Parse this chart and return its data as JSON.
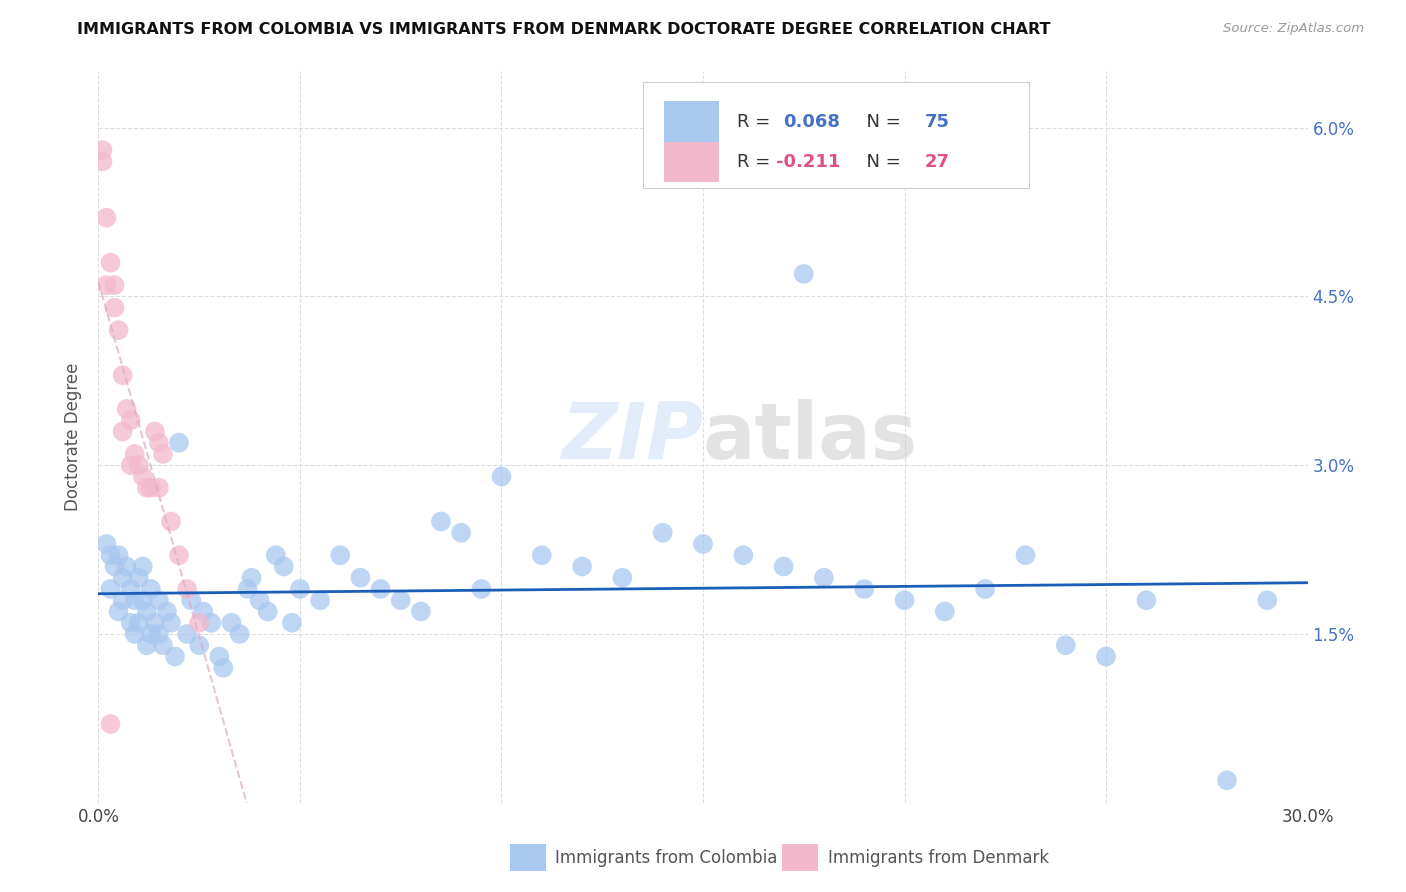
{
  "title": "IMMIGRANTS FROM COLOMBIA VS IMMIGRANTS FROM DENMARK DOCTORATE DEGREE CORRELATION CHART",
  "source": "Source: ZipAtlas.com",
  "ylabel": "Doctorate Degree",
  "xlim": [
    0.0,
    0.3
  ],
  "ylim": [
    0.0,
    0.065
  ],
  "xticks": [
    0.0,
    0.05,
    0.1,
    0.15,
    0.2,
    0.25,
    0.3
  ],
  "yticks": [
    0.0,
    0.015,
    0.03,
    0.045,
    0.06
  ],
  "colombia_R": 0.068,
  "colombia_N": 75,
  "denmark_R": -0.211,
  "denmark_N": 27,
  "colombia_color": "#a8c8f0",
  "denmark_color": "#f4b8cc",
  "colombia_line_color": "#1a5eb8",
  "denmark_line_color": "#e8b8c8",
  "watermark_color": "#ddeeff",
  "background_color": "#ffffff",
  "grid_color": "#dddddd",
  "right_tick_color": "#4472c4",
  "colombia_scatter_x": [
    0.002,
    0.003,
    0.003,
    0.004,
    0.005,
    0.005,
    0.006,
    0.006,
    0.007,
    0.008,
    0.008,
    0.009,
    0.009,
    0.01,
    0.01,
    0.011,
    0.011,
    0.012,
    0.012,
    0.013,
    0.013,
    0.014,
    0.015,
    0.015,
    0.016,
    0.017,
    0.018,
    0.019,
    0.02,
    0.022,
    0.023,
    0.025,
    0.026,
    0.028,
    0.03,
    0.031,
    0.033,
    0.035,
    0.037,
    0.038,
    0.04,
    0.042,
    0.044,
    0.046,
    0.048,
    0.05,
    0.055,
    0.06,
    0.065,
    0.07,
    0.075,
    0.08,
    0.085,
    0.09,
    0.095,
    0.1,
    0.11,
    0.12,
    0.13,
    0.14,
    0.15,
    0.16,
    0.17,
    0.18,
    0.19,
    0.2,
    0.21,
    0.22,
    0.23,
    0.24,
    0.25,
    0.26,
    0.175,
    0.28,
    0.29
  ],
  "colombia_scatter_y": [
    0.023,
    0.019,
    0.022,
    0.021,
    0.017,
    0.022,
    0.018,
    0.02,
    0.021,
    0.016,
    0.019,
    0.015,
    0.018,
    0.016,
    0.02,
    0.018,
    0.021,
    0.014,
    0.017,
    0.015,
    0.019,
    0.016,
    0.015,
    0.018,
    0.014,
    0.017,
    0.016,
    0.013,
    0.032,
    0.015,
    0.018,
    0.014,
    0.017,
    0.016,
    0.013,
    0.012,
    0.016,
    0.015,
    0.019,
    0.02,
    0.018,
    0.017,
    0.022,
    0.021,
    0.016,
    0.019,
    0.018,
    0.022,
    0.02,
    0.019,
    0.018,
    0.017,
    0.025,
    0.024,
    0.019,
    0.029,
    0.022,
    0.021,
    0.02,
    0.024,
    0.023,
    0.022,
    0.021,
    0.02,
    0.019,
    0.018,
    0.017,
    0.019,
    0.022,
    0.014,
    0.013,
    0.018,
    0.047,
    0.002,
    0.018
  ],
  "denmark_scatter_x": [
    0.001,
    0.001,
    0.002,
    0.003,
    0.004,
    0.004,
    0.005,
    0.006,
    0.007,
    0.008,
    0.009,
    0.01,
    0.011,
    0.012,
    0.013,
    0.014,
    0.015,
    0.016,
    0.018,
    0.02,
    0.022,
    0.025,
    0.003,
    0.002,
    0.006,
    0.008,
    0.015
  ],
  "denmark_scatter_y": [
    0.058,
    0.057,
    0.052,
    0.048,
    0.046,
    0.044,
    0.042,
    0.038,
    0.035,
    0.034,
    0.031,
    0.03,
    0.029,
    0.028,
    0.028,
    0.033,
    0.032,
    0.031,
    0.025,
    0.022,
    0.019,
    0.016,
    0.007,
    0.046,
    0.033,
    0.03,
    0.028
  ]
}
